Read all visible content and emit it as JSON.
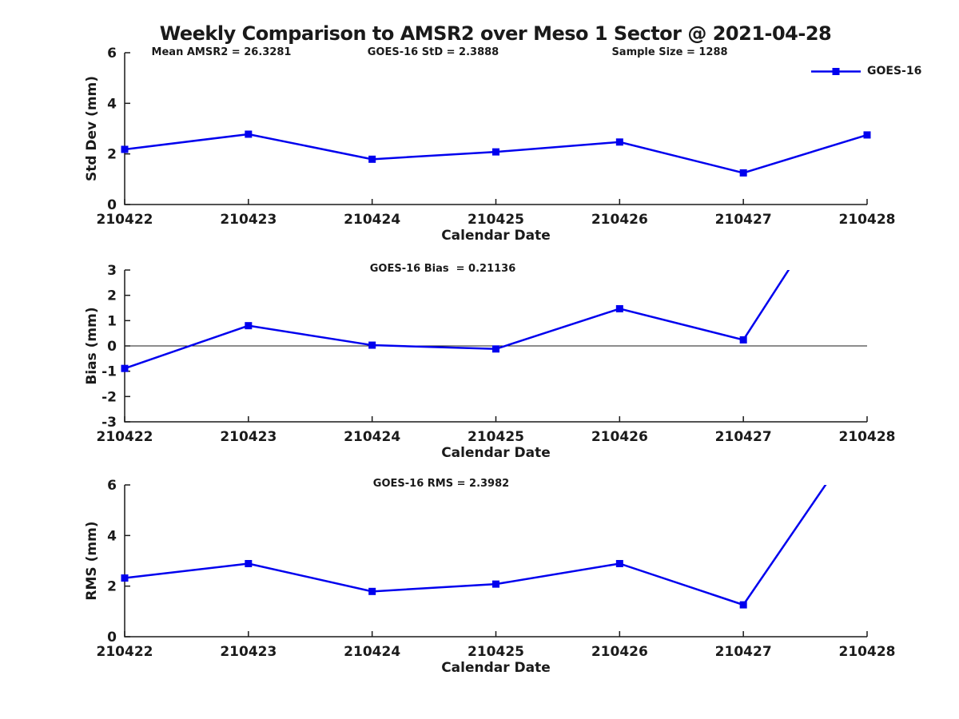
{
  "title": "Weekly Comparison to AMSR2 over Meso 1 Sector @ 2021-04-28",
  "legend": {
    "label": "GOES-16"
  },
  "colors": {
    "line": "#0000EE",
    "text": "#1a1a1a",
    "axis": "#1a1a1a"
  },
  "chart_data": [
    {
      "type": "line",
      "panel": "std-dev",
      "series_name": "GOES-16",
      "categories": [
        "210422",
        "210423",
        "210424",
        "210425",
        "210426",
        "210427",
        "210428"
      ],
      "values": [
        2.18,
        2.78,
        1.79,
        2.08,
        2.47,
        1.25,
        2.75
      ],
      "xlabel": "Calendar Date",
      "ylabel": "Std Dev (mm)",
      "ylim": [
        0,
        6
      ],
      "yticks": [
        0,
        2,
        4,
        6
      ],
      "grid": false,
      "legend_position": "top-right",
      "marker": "square",
      "annotations": [
        "Mean AMSR2 = 26.3281",
        "GOES-16 StD = 2.3888",
        "Sample Size = 1288"
      ]
    },
    {
      "type": "line",
      "panel": "bias",
      "series_name": "GOES-16",
      "categories": [
        "210422",
        "210423",
        "210424",
        "210425",
        "210426",
        "210427",
        "210428"
      ],
      "values": [
        -0.89,
        0.8,
        0.03,
        -0.12,
        1.47,
        0.24,
        7.8
      ],
      "xlabel": "Calendar Date",
      "ylabel": "Bias (mm)",
      "ylim": [
        -3,
        3
      ],
      "yticks": [
        -3,
        -2,
        -1,
        0,
        1,
        2,
        3
      ],
      "grid": false,
      "zero_line": true,
      "marker": "square",
      "annotation": "GOES-16 Bias  = 0.21136"
    },
    {
      "type": "line",
      "panel": "rms",
      "series_name": "GOES-16",
      "categories": [
        "210422",
        "210423",
        "210424",
        "210425",
        "210426",
        "210427",
        "210428"
      ],
      "values": [
        2.32,
        2.89,
        1.79,
        2.08,
        2.89,
        1.26,
        8.4
      ],
      "xlabel": "Calendar Date",
      "ylabel": "RMS (mm)",
      "ylim": [
        0,
        6
      ],
      "yticks": [
        0,
        2,
        4,
        6
      ],
      "grid": false,
      "marker": "square",
      "annotation": "GOES-16 RMS = 2.3982"
    }
  ]
}
